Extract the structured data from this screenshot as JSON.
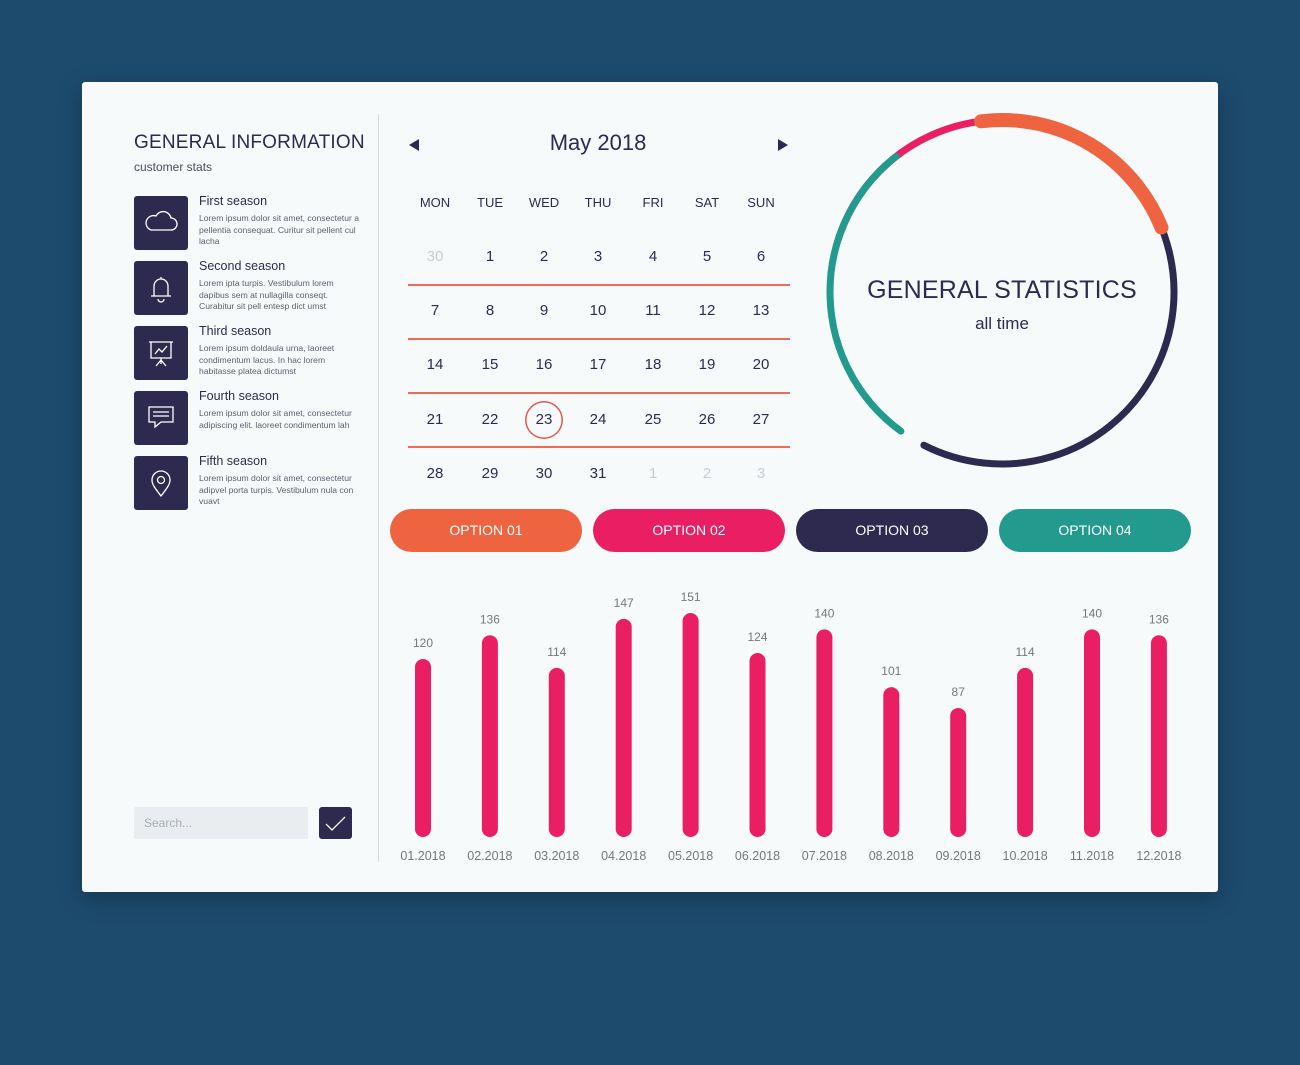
{
  "sidebar": {
    "title": "GENERAL INFORMATION",
    "subtitle": "customer stats",
    "items": [
      {
        "title": "First season",
        "desc": "Lorem ipsum dolor sit amet, consectetur a pellentia consequat. Curitur sit pellent cul lacha",
        "icon": "cloud-icon"
      },
      {
        "title": "Second season",
        "desc": "Lorem ipta turpis. Vestibulum lorem dapibus sem at nullagilla conseqt. Curabitur sit pell entesp dict umst",
        "icon": "bell-icon"
      },
      {
        "title": "Third season",
        "desc": "Lorem ipsum doldaula urna, laoreet condimentum lacus. In hac lorem habitasse platea dictumst",
        "icon": "presentation-chart-icon"
      },
      {
        "title": "Fourth season",
        "desc": "Lorem ipsum dolor sit amet, consectetur adipiscing elit. laoreet condimentum lah",
        "icon": "chat-icon"
      },
      {
        "title": "Fifth season",
        "desc": "Lorem ipsum dolor sit amet, consectetur adipvel porta turpis. Vestibulum nula con vuavt",
        "icon": "location-pin-icon"
      }
    ],
    "search": {
      "placeholder": "Search...",
      "value": ""
    }
  },
  "calendar": {
    "title": "May 2018",
    "weekdays": [
      "MON",
      "TUE",
      "WED",
      "THU",
      "FRI",
      "SAT",
      "SUN"
    ],
    "weeks": [
      [
        "30",
        "1",
        "2",
        "3",
        "4",
        "5",
        "6"
      ],
      [
        "7",
        "8",
        "9",
        "10",
        "11",
        "12",
        "13"
      ],
      [
        "14",
        "15",
        "16",
        "17",
        "18",
        "19",
        "20"
      ],
      [
        "21",
        "22",
        "23",
        "24",
        "25",
        "26",
        "27"
      ],
      [
        "28",
        "29",
        "30",
        "31",
        "1",
        "2",
        "3"
      ]
    ],
    "selected_day": "23"
  },
  "options": [
    {
      "label": "OPTION 01",
      "color": "#ee6340"
    },
    {
      "label": "OPTION 02",
      "color": "#e91e63"
    },
    {
      "label": "OPTION 03",
      "color": "#2e2a4f"
    },
    {
      "label": "OPTION 04",
      "color": "#229a8e"
    }
  ],
  "stats": {
    "title": "GENERAL STATISTICS",
    "subtitle": "all time",
    "colors": [
      "#e91e63",
      "#2e2a4f",
      "#229a8e",
      "#ee6340"
    ]
  },
  "chart_data": {
    "type": "bar",
    "categories": [
      "01.2018",
      "02.2018",
      "03.2018",
      "04.2018",
      "05.2018",
      "06.2018",
      "07.2018",
      "08.2018",
      "09.2018",
      "10.2018",
      "11.2018",
      "12.2018"
    ],
    "values": [
      120,
      136,
      114,
      147,
      151,
      124,
      140,
      101,
      87,
      114,
      140,
      136
    ],
    "title": "",
    "xlabel": "",
    "ylabel": "",
    "ylim": [
      0,
      151
    ],
    "color": "#e91e63",
    "grid": false
  }
}
